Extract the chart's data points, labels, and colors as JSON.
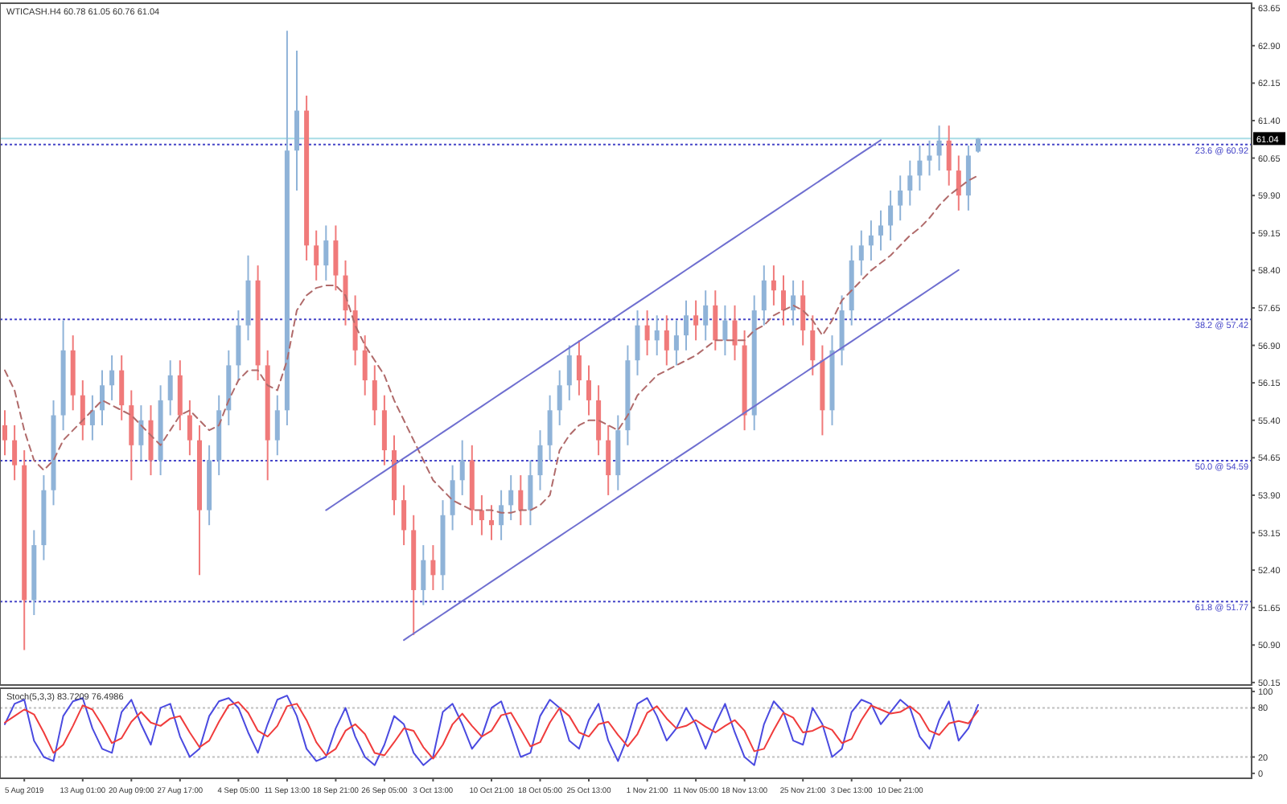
{
  "chart_data": [
    {
      "type": "candlestick",
      "title": "WTICASH.H4  60.78 61.05 60.76 61.04",
      "categories": [
        null,
        null,
        null,
        null,
        null,
        null,
        null,
        null,
        null,
        null,
        null,
        null,
        null,
        null,
        null,
        null,
        null,
        null,
        null,
        null,
        null,
        null,
        null,
        null,
        null,
        null,
        null,
        null,
        null,
        null,
        null,
        null,
        null,
        null,
        null,
        null,
        null,
        null,
        null,
        null,
        null,
        null,
        null,
        null,
        null,
        null,
        null,
        null,
        null,
        null,
        null,
        null,
        null,
        null,
        null,
        null,
        null,
        null,
        null,
        null,
        null,
        null,
        null,
        null,
        null,
        null,
        null,
        null,
        null,
        null,
        null,
        null,
        null,
        null,
        null,
        null,
        null,
        null,
        null,
        null,
        null,
        null,
        null,
        null,
        null,
        null,
        null,
        null,
        null,
        null,
        null,
        null,
        null,
        null,
        null,
        null,
        null,
        null,
        null,
        null,
        null
      ],
      "ohlc": [
        [
          55.3,
          55.6,
          54.7,
          55.0
        ],
        [
          55.0,
          55.3,
          54.2,
          54.5
        ],
        [
          54.5,
          54.8,
          50.8,
          51.8
        ],
        [
          51.8,
          53.2,
          51.5,
          52.9
        ],
        [
          52.9,
          54.3,
          52.6,
          54.0
        ],
        [
          54.0,
          55.8,
          53.7,
          55.5
        ],
        [
          55.5,
          57.4,
          55.2,
          56.8
        ],
        [
          56.8,
          57.1,
          55.6,
          55.9
        ],
        [
          55.9,
          56.2,
          55.0,
          55.3
        ],
        [
          55.3,
          55.9,
          55.0,
          55.6
        ],
        [
          55.6,
          56.4,
          55.3,
          56.1
        ],
        [
          56.1,
          56.7,
          55.8,
          56.4
        ],
        [
          56.4,
          56.7,
          55.4,
          55.7
        ],
        [
          55.7,
          56.0,
          54.2,
          54.9
        ],
        [
          54.9,
          55.7,
          54.6,
          55.4
        ],
        [
          55.4,
          55.7,
          54.3,
          54.6
        ],
        [
          54.6,
          56.1,
          54.3,
          55.8
        ],
        [
          55.8,
          56.6,
          55.5,
          56.3
        ],
        [
          56.3,
          56.6,
          55.2,
          55.5
        ],
        [
          55.5,
          55.8,
          54.7,
          55.0
        ],
        [
          55.0,
          55.3,
          52.3,
          53.6
        ],
        [
          53.6,
          54.9,
          53.3,
          54.6
        ],
        [
          54.6,
          55.9,
          54.3,
          55.6
        ],
        [
          55.6,
          56.8,
          55.3,
          56.5
        ],
        [
          56.5,
          57.6,
          56.2,
          57.3
        ],
        [
          57.3,
          58.7,
          57.0,
          58.2
        ],
        [
          58.2,
          58.5,
          56.2,
          56.5
        ],
        [
          56.5,
          56.8,
          54.2,
          55.0
        ],
        [
          55.0,
          55.9,
          54.7,
          55.6
        ],
        [
          55.6,
          63.2,
          55.3,
          60.8
        ],
        [
          60.8,
          62.8,
          60.0,
          61.6
        ],
        [
          61.6,
          61.9,
          58.6,
          58.9
        ],
        [
          58.9,
          59.2,
          58.2,
          58.5
        ],
        [
          58.5,
          59.3,
          58.2,
          59.0
        ],
        [
          59.0,
          59.3,
          58.0,
          58.3
        ],
        [
          58.3,
          58.6,
          57.3,
          57.6
        ],
        [
          57.6,
          57.9,
          56.5,
          56.8
        ],
        [
          56.8,
          57.1,
          55.9,
          56.2
        ],
        [
          56.2,
          56.5,
          55.3,
          55.6
        ],
        [
          55.6,
          55.9,
          54.5,
          54.8
        ],
        [
          54.8,
          55.1,
          53.5,
          53.8
        ],
        [
          53.8,
          54.1,
          52.9,
          53.2
        ],
        [
          53.2,
          53.5,
          51.1,
          52.0
        ],
        [
          52.0,
          52.9,
          51.7,
          52.6
        ],
        [
          52.6,
          52.9,
          52.0,
          52.3
        ],
        [
          52.3,
          53.8,
          52.0,
          53.5
        ],
        [
          53.5,
          54.5,
          53.2,
          54.2
        ],
        [
          54.2,
          55.0,
          53.9,
          54.6
        ],
        [
          54.6,
          54.9,
          53.3,
          53.6
        ],
        [
          53.6,
          53.9,
          53.1,
          53.4
        ],
        [
          53.4,
          53.7,
          53.0,
          53.3
        ],
        [
          53.3,
          54.0,
          53.0,
          53.7
        ],
        [
          53.7,
          54.3,
          53.4,
          54.0
        ],
        [
          54.0,
          54.3,
          53.3,
          53.6
        ],
        [
          53.6,
          54.6,
          53.3,
          54.3
        ],
        [
          54.3,
          55.2,
          54.0,
          54.9
        ],
        [
          54.9,
          55.9,
          54.6,
          55.6
        ],
        [
          55.6,
          56.4,
          55.3,
          56.1
        ],
        [
          56.1,
          56.9,
          55.8,
          56.7
        ],
        [
          56.7,
          57.0,
          55.9,
          56.2
        ],
        [
          56.2,
          56.5,
          55.5,
          55.8
        ],
        [
          55.8,
          56.1,
          54.7,
          55.0
        ],
        [
          55.0,
          55.3,
          53.9,
          54.3
        ],
        [
          54.3,
          55.5,
          54.0,
          55.2
        ],
        [
          55.2,
          56.9,
          54.9,
          56.6
        ],
        [
          56.6,
          57.6,
          56.3,
          57.3
        ],
        [
          57.3,
          57.6,
          56.7,
          57.0
        ],
        [
          57.0,
          57.5,
          56.7,
          57.2
        ],
        [
          57.2,
          57.5,
          56.5,
          56.8
        ],
        [
          56.8,
          57.4,
          56.5,
          57.1
        ],
        [
          57.1,
          57.8,
          56.8,
          57.5
        ],
        [
          57.5,
          57.8,
          57.0,
          57.3
        ],
        [
          57.3,
          58.0,
          57.0,
          57.7
        ],
        [
          57.7,
          58.0,
          56.8,
          57.0
        ],
        [
          57.0,
          57.7,
          56.7,
          57.4
        ],
        [
          57.4,
          57.7,
          56.6,
          56.9
        ],
        [
          56.9,
          57.2,
          55.2,
          55.5
        ],
        [
          55.5,
          57.9,
          55.2,
          57.6
        ],
        [
          57.6,
          58.5,
          57.3,
          58.2
        ],
        [
          58.2,
          58.5,
          57.7,
          58.0
        ],
        [
          58.0,
          58.3,
          57.3,
          57.6
        ],
        [
          57.6,
          58.2,
          57.3,
          57.9
        ],
        [
          57.9,
          58.2,
          56.9,
          57.2
        ],
        [
          57.2,
          57.5,
          56.3,
          56.6
        ],
        [
          56.6,
          56.9,
          55.1,
          55.6
        ],
        [
          55.6,
          57.1,
          55.3,
          56.8
        ],
        [
          56.8,
          57.9,
          56.5,
          57.6
        ],
        [
          57.6,
          58.9,
          57.3,
          58.6
        ],
        [
          58.6,
          59.2,
          58.3,
          58.9
        ],
        [
          58.9,
          59.4,
          58.6,
          59.1
        ],
        [
          59.1,
          59.6,
          58.8,
          59.3
        ],
        [
          59.3,
          60.0,
          59.0,
          59.7
        ],
        [
          59.7,
          60.3,
          59.4,
          60.0
        ],
        [
          60.0,
          60.6,
          59.7,
          60.3
        ],
        [
          60.3,
          60.9,
          60.0,
          60.6
        ],
        [
          60.6,
          61.0,
          60.3,
          60.7
        ],
        [
          60.7,
          61.3,
          60.4,
          61.0
        ],
        [
          61.0,
          61.3,
          60.1,
          60.4
        ],
        [
          60.4,
          60.7,
          59.6,
          59.9
        ],
        [
          59.9,
          60.9,
          59.6,
          60.7
        ],
        [
          60.78,
          61.05,
          60.76,
          61.04
        ]
      ],
      "series": [
        {
          "type": "line",
          "color": "#b06a6a",
          "line_style": "dashed",
          "values": [
            56.4,
            56.0,
            55.2,
            54.6,
            54.4,
            54.6,
            55.0,
            55.2,
            55.4,
            55.6,
            55.8,
            55.7,
            55.6,
            55.5,
            55.3,
            55.1,
            54.9,
            55.2,
            55.5,
            55.6,
            55.4,
            55.2,
            55.3,
            55.8,
            56.2,
            56.4,
            56.4,
            56.1,
            56.0,
            56.6,
            57.6,
            57.9,
            58.05,
            58.1,
            58.1,
            57.9,
            57.3,
            56.9,
            56.6,
            56.3,
            55.8,
            55.4,
            55.0,
            54.6,
            54.2,
            54.0,
            53.8,
            53.7,
            53.6,
            53.6,
            53.6,
            53.55,
            53.55,
            53.6,
            53.6,
            53.7,
            53.9,
            54.8,
            55.1,
            55.3,
            55.4,
            55.4,
            55.3,
            55.2,
            55.5,
            55.9,
            56.1,
            56.3,
            56.4,
            56.5,
            56.6,
            56.7,
            56.85,
            57.0,
            57.0,
            57.0,
            57.0,
            57.2,
            57.3,
            57.5,
            57.6,
            57.7,
            57.6,
            57.4,
            57.1,
            57.4,
            57.8,
            58.0,
            58.2,
            58.4,
            58.55,
            58.7,
            58.9,
            59.1,
            59.25,
            59.45,
            59.7,
            59.9,
            60.05,
            60.2,
            60.3
          ]
        },
        {
          "type": "line",
          "color": "#6f6fd0",
          "line_style": "solid",
          "values": [
            null,
            null,
            null,
            null,
            null,
            null,
            null,
            null,
            null,
            null,
            null,
            null,
            null,
            null,
            null,
            null,
            null,
            null,
            null,
            null,
            null,
            null,
            null,
            null,
            null,
            null,
            null,
            null,
            null,
            null,
            null,
            null,
            null,
            53.6,
            53.73,
            53.86,
            53.99,
            54.12,
            54.25,
            54.38,
            54.51,
            54.64,
            54.77,
            54.9,
            55.03,
            55.16,
            55.29,
            55.42,
            55.55,
            55.68,
            55.81,
            55.94,
            56.07,
            56.2,
            56.33,
            56.46,
            56.59,
            56.72,
            56.85,
            56.98,
            57.11,
            57.24,
            57.37,
            57.5,
            57.63,
            57.76,
            57.89,
            58.02,
            58.15,
            58.28,
            58.41,
            58.54,
            58.67,
            58.8,
            58.93,
            59.06,
            59.19,
            59.32,
            59.45,
            59.58,
            59.71,
            59.84,
            59.97,
            60.1,
            60.23,
            60.36,
            60.49,
            60.62,
            60.75,
            60.88,
            61.01,
            null,
            null,
            null,
            null,
            null,
            null,
            null,
            null,
            null,
            null
          ]
        },
        {
          "type": "line",
          "color": "#6f6fd0",
          "line_style": "solid",
          "values": [
            null,
            null,
            null,
            null,
            null,
            null,
            null,
            null,
            null,
            null,
            null,
            null,
            null,
            null,
            null,
            null,
            null,
            null,
            null,
            null,
            null,
            null,
            null,
            null,
            null,
            null,
            null,
            null,
            null,
            null,
            null,
            null,
            null,
            null,
            null,
            null,
            null,
            null,
            null,
            null,
            null,
            51.0,
            51.13,
            51.26,
            51.39,
            51.52,
            51.65,
            51.78,
            51.91,
            52.04,
            52.17,
            52.3,
            52.43,
            52.56,
            52.69,
            52.82,
            52.95,
            53.08,
            53.21,
            53.34,
            53.47,
            53.6,
            53.73,
            53.86,
            53.99,
            54.12,
            54.25,
            54.38,
            54.51,
            54.64,
            54.77,
            54.9,
            55.03,
            55.16,
            55.29,
            55.42,
            55.55,
            55.68,
            55.81,
            55.94,
            56.07,
            56.2,
            56.33,
            56.46,
            56.59,
            56.72,
            56.85,
            56.98,
            57.11,
            57.24,
            57.37,
            57.5,
            57.63,
            57.76,
            57.89,
            58.02,
            58.15,
            58.28,
            58.41,
            null,
            null
          ]
        }
      ],
      "ylim": [
        50.1,
        63.75
      ],
      "yticks": [
        50.15,
        {
          "value": 50.9,
          "label": "50.90"
        },
        51.65,
        {
          "value": 52.4,
          "label": "52.40"
        },
        53.15,
        {
          "value": 53.9,
          "label": "53.90"
        },
        54.65,
        {
          "value": 55.4,
          "label": "55.40"
        },
        56.15,
        {
          "value": 56.9,
          "label": "56.90"
        },
        57.65,
        {
          "value": 58.4,
          "label": "58.40"
        },
        59.15,
        {
          "value": 59.9,
          "label": "59.90"
        },
        60.65,
        {
          "value": 61.4,
          "label": "61.40"
        },
        62.15,
        {
          "value": 62.9,
          "label": "62.90"
        },
        63.65
      ],
      "ref_lines": [
        {
          "axis": "y",
          "value": 60.92,
          "label": "23.6 @ 60.92",
          "color": "#4646c8",
          "line_style": "dotted"
        },
        {
          "axis": "y",
          "value": 61.04,
          "label": "61.04",
          "color": "#a8dce6",
          "line_style": "solid"
        },
        {
          "axis": "y",
          "value": 57.42,
          "label": "38.2 @ 57.42",
          "color": "#4646c8",
          "line_style": "dotted"
        },
        {
          "axis": "y",
          "value": 54.59,
          "label": "50.0 @ 54.59",
          "color": "#4646c8",
          "line_style": "dotted"
        },
        {
          "axis": "y",
          "value": 51.77,
          "label": "61.8 @ 51.77",
          "color": "#4646c8",
          "line_style": "dotted"
        }
      ],
      "tick_labels": "y"
    },
    {
      "type": "line",
      "title": "Stoch(5,3,3) 83.7209 76.4986",
      "categories": [
        null,
        null,
        "5 Aug 2019",
        null,
        null,
        null,
        null,
        null,
        "13 Aug 01:00",
        null,
        null,
        null,
        null,
        "20 Aug 09:00",
        null,
        null,
        null,
        null,
        "27 Aug 17:00",
        null,
        null,
        null,
        null,
        null,
        "4 Sep 05:00",
        null,
        null,
        null,
        null,
        "11 Sep 13:00",
        null,
        null,
        null,
        null,
        "18 Sep 21:00",
        null,
        null,
        null,
        null,
        "26 Sep 05:00",
        null,
        null,
        null,
        null,
        "3 Oct 13:00",
        null,
        null,
        null,
        null,
        null,
        "10 Oct 21:00",
        null,
        null,
        null,
        null,
        "18 Oct 05:00",
        null,
        null,
        null,
        null,
        "25 Oct 13:00",
        null,
        null,
        null,
        null,
        null,
        "1 Nov 21:00",
        null,
        null,
        null,
        null,
        "11 Nov 05:00",
        null,
        null,
        null,
        null,
        "18 Nov 13:00",
        null,
        null,
        null,
        null,
        null,
        "25 Nov 21:00",
        null,
        null,
        null,
        null,
        "3 Dec 13:00",
        null,
        null,
        null,
        null,
        "10 Dec 21:00",
        null,
        null,
        null,
        null,
        null,
        null,
        null,
        null
      ],
      "series": [
        {
          "color": "#4a4ae0",
          "values": [
            60,
            85,
            90,
            40,
            20,
            15,
            70,
            88,
            92,
            55,
            30,
            25,
            75,
            90,
            60,
            35,
            80,
            85,
            45,
            20,
            30,
            70,
            88,
            92,
            80,
            50,
            25,
            60,
            90,
            95,
            70,
            30,
            15,
            20,
            55,
            80,
            45,
            20,
            10,
            35,
            70,
            60,
            25,
            10,
            20,
            75,
            85,
            60,
            30,
            45,
            80,
            88,
            55,
            20,
            25,
            70,
            90,
            80,
            40,
            30,
            65,
            85,
            40,
            15,
            45,
            85,
            92,
            70,
            40,
            55,
            80,
            60,
            30,
            60,
            85,
            50,
            20,
            10,
            60,
            88,
            75,
            40,
            35,
            80,
            60,
            20,
            30,
            75,
            90,
            85,
            60,
            75,
            90,
            80,
            45,
            30,
            65,
            88,
            40,
            55,
            83.7
          ]
        },
        {
          "color": "#f03c3c",
          "values": [
            62,
            70,
            78,
            72,
            50,
            25,
            35,
            58,
            83,
            78,
            59,
            37,
            43,
            63,
            75,
            62,
            58,
            67,
            70,
            50,
            32,
            40,
            63,
            83,
            87,
            74,
            52,
            45,
            58,
            82,
            85,
            65,
            38,
            22,
            30,
            52,
            60,
            48,
            25,
            22,
            38,
            55,
            52,
            32,
            18,
            35,
            60,
            73,
            58,
            45,
            52,
            71,
            74,
            54,
            33,
            38,
            62,
            80,
            70,
            50,
            45,
            60,
            63,
            47,
            33,
            48,
            74,
            82,
            67,
            55,
            58,
            65,
            57,
            50,
            58,
            65,
            52,
            27,
            30,
            53,
            74,
            68,
            50,
            52,
            58,
            53,
            37,
            42,
            65,
            83,
            78,
            73,
            75,
            82,
            72,
            52,
            47,
            61,
            64,
            61,
            76.5
          ]
        }
      ],
      "ylim": [
        -6,
        104
      ],
      "yticks": [
        0,
        20,
        80,
        100
      ],
      "ref_lines": [
        {
          "axis": "y",
          "value": 80,
          "color": "#c0c0c0",
          "line_style": "dotted"
        },
        {
          "axis": "y",
          "value": 20,
          "color": "#c0c0c0",
          "line_style": "dotted"
        }
      ]
    }
  ]
}
